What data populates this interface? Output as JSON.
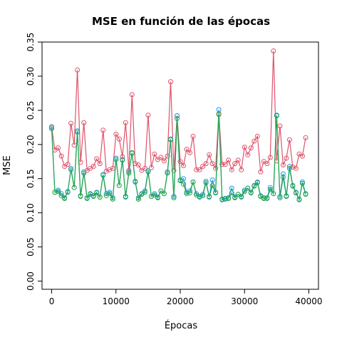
{
  "chart_data": {
    "type": "line",
    "title": "MSE en función de las épocas",
    "xlabel": "Épocas",
    "ylabel": "MSE",
    "xlim": [
      -1500,
      41500
    ],
    "ylim": [
      -0.012,
      0.35
    ],
    "xticks": [
      0,
      10000,
      20000,
      30000,
      40000
    ],
    "yticks": [
      0.0,
      0.05,
      0.1,
      0.15,
      0.2,
      0.25,
      0.3,
      0.35
    ],
    "ytick_labels": [
      "0.00",
      "0.05",
      "0.10",
      "0.15",
      "0.20",
      "0.25",
      "0.30",
      "0.35"
    ],
    "grid": false,
    "markers": "open circles",
    "series": [
      {
        "color": "#DF536B",
        "x": [
          0,
          500,
          1000,
          1500,
          2000,
          2500,
          3000,
          3500,
          4000,
          4500,
          5000,
          5500,
          6000,
          6500,
          7000,
          7500,
          8000,
          8500,
          9000,
          9500,
          10000,
          10500,
          11000,
          11500,
          12000,
          12500,
          13000,
          13500,
          14000,
          14500,
          15000,
          15500,
          16000,
          16500,
          17000,
          17500,
          18000,
          18500,
          19000,
          19500,
          20000,
          20500,
          21000,
          21500,
          22000,
          22500,
          23000,
          23500,
          24000,
          24500,
          25000,
          25500,
          26000,
          26500,
          27000,
          27500,
          28000,
          28500,
          29000,
          29500,
          30000,
          30500,
          31000,
          31500,
          32000,
          32500,
          33000,
          33500,
          34000,
          34500,
          35000,
          35500,
          36000,
          36500,
          37000,
          37500,
          38000,
          38500,
          39000,
          39500
        ],
        "values": [
          0.225,
          0.192,
          0.195,
          0.183,
          0.168,
          0.171,
          0.231,
          0.199,
          0.309,
          0.174,
          0.232,
          0.162,
          0.165,
          0.168,
          0.179,
          0.172,
          0.221,
          0.161,
          0.163,
          0.165,
          0.215,
          0.208,
          0.182,
          0.232,
          0.162,
          0.273,
          0.172,
          0.17,
          0.162,
          0.165,
          0.243,
          0.166,
          0.186,
          0.178,
          0.181,
          0.176,
          0.183,
          0.292,
          0.162,
          0.242,
          0.175,
          0.169,
          0.193,
          0.188,
          0.212,
          0.163,
          0.163,
          0.168,
          0.172,
          0.185,
          0.172,
          0.165,
          0.245,
          0.171,
          0.171,
          0.177,
          0.163,
          0.172,
          0.177,
          0.163,
          0.196,
          0.185,
          0.195,
          0.205,
          0.212,
          0.16,
          0.175,
          0.172,
          0.181,
          0.337,
          0.176,
          0.227,
          0.17,
          0.18,
          0.207,
          0.167,
          0.165,
          0.186,
          0.183,
          0.21
        ]
      },
      {
        "color": "#2297E6",
        "x": [
          0,
          500,
          1000,
          1500,
          2000,
          2500,
          3000,
          3500,
          4000,
          4500,
          5000,
          5500,
          6000,
          6500,
          7000,
          7500,
          8000,
          8500,
          9000,
          9500,
          10000,
          10500,
          11000,
          11500,
          12000,
          12500,
          13000,
          13500,
          14000,
          14500,
          15000,
          15500,
          16000,
          16500,
          17000,
          17500,
          18000,
          18500,
          19000,
          19500,
          20000,
          20500,
          21000,
          21500,
          22000,
          22500,
          23000,
          23500,
          24000,
          24500,
          25000,
          25500,
          26000,
          26500,
          27000,
          27500,
          28000,
          28500,
          29000,
          29500,
          30000,
          30500,
          31000,
          31500,
          32000,
          32500,
          33000,
          33500,
          34000,
          34500,
          35000,
          35500,
          36000,
          36500,
          37000,
          37500,
          38000,
          38500,
          39000,
          39500
        ],
        "values": [
          0.226,
          0.13,
          0.133,
          0.128,
          0.122,
          0.13,
          0.165,
          0.137,
          0.22,
          0.125,
          0.16,
          0.122,
          0.127,
          0.125,
          0.13,
          0.123,
          0.156,
          0.128,
          0.13,
          0.122,
          0.18,
          0.14,
          0.178,
          0.123,
          0.16,
          0.187,
          0.145,
          0.122,
          0.128,
          0.132,
          0.162,
          0.124,
          0.128,
          0.123,
          0.132,
          0.128,
          0.16,
          0.208,
          0.124,
          0.242,
          0.148,
          0.15,
          0.13,
          0.132,
          0.145,
          0.128,
          0.124,
          0.127,
          0.146,
          0.124,
          0.148,
          0.13,
          0.251,
          0.12,
          0.121,
          0.122,
          0.136,
          0.123,
          0.127,
          0.124,
          0.133,
          0.136,
          0.13,
          0.14,
          0.145,
          0.125,
          0.122,
          0.122,
          0.137,
          0.128,
          0.243,
          0.124,
          0.157,
          0.125,
          0.168,
          0.14,
          0.13,
          0.12,
          0.145,
          0.128
        ]
      },
      {
        "color": "#28A745",
        "x": [
          0,
          500,
          1000,
          1500,
          2000,
          2500,
          3000,
          3500,
          4000,
          4500,
          5000,
          5500,
          6000,
          6500,
          7000,
          7500,
          8000,
          8500,
          9000,
          9500,
          10000,
          10500,
          11000,
          11500,
          12000,
          12500,
          13000,
          13500,
          14000,
          14500,
          15000,
          15500,
          16000,
          16500,
          17000,
          17500,
          18000,
          18500,
          19000,
          19500,
          20000,
          20500,
          21000,
          21500,
          22000,
          22500,
          23000,
          23500,
          24000,
          24500,
          25000,
          25500,
          26000,
          26500,
          27000,
          27500,
          28000,
          28500,
          29000,
          29500,
          30000,
          30500,
          31000,
          31500,
          32000,
          32500,
          33000,
          33500,
          34000,
          34500,
          35000,
          35500,
          36000,
          36500,
          37000,
          37500,
          38000,
          38500,
          39000,
          39500
        ],
        "values": [
          0.223,
          0.13,
          0.131,
          0.125,
          0.121,
          0.131,
          0.163,
          0.137,
          0.218,
          0.124,
          0.158,
          0.121,
          0.128,
          0.124,
          0.129,
          0.123,
          0.155,
          0.125,
          0.128,
          0.12,
          0.178,
          0.14,
          0.177,
          0.124,
          0.158,
          0.188,
          0.146,
          0.12,
          0.127,
          0.13,
          0.16,
          0.124,
          0.126,
          0.122,
          0.132,
          0.128,
          0.158,
          0.207,
          0.122,
          0.238,
          0.147,
          0.142,
          0.128,
          0.129,
          0.145,
          0.126,
          0.123,
          0.125,
          0.144,
          0.123,
          0.14,
          0.129,
          0.244,
          0.119,
          0.12,
          0.121,
          0.129,
          0.122,
          0.127,
          0.123,
          0.131,
          0.136,
          0.129,
          0.139,
          0.144,
          0.124,
          0.121,
          0.121,
          0.134,
          0.128,
          0.242,
          0.122,
          0.152,
          0.124,
          0.165,
          0.139,
          0.129,
          0.119,
          0.143,
          0.127
        ]
      }
    ]
  }
}
